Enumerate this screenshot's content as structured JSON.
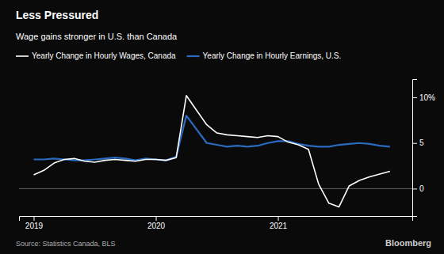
{
  "chart_data": {
    "type": "line",
    "title": "Less Pressured",
    "subtitle": "Wage gains stronger in U.S. than Canada",
    "annotations": [
      "Source: Statistics Canada, BLS",
      "Bloomberg"
    ],
    "x": [
      2019.0,
      2019.083,
      2019.167,
      2019.25,
      2019.333,
      2019.417,
      2019.5,
      2019.583,
      2019.667,
      2019.75,
      2019.833,
      2019.917,
      2020.0,
      2020.083,
      2020.167,
      2020.25,
      2020.333,
      2020.417,
      2020.5,
      2020.583,
      2020.667,
      2020.75,
      2020.833,
      2020.917,
      2021.0,
      2021.083,
      2021.167,
      2021.25,
      2021.333,
      2021.417,
      2021.5,
      2021.583,
      2021.667,
      2021.75,
      2021.833,
      2021.917
    ],
    "series": [
      {
        "name": "Yearly Change in Hourly Wages, Canada",
        "color": "#ffffff",
        "values": [
          1.5,
          2.0,
          2.8,
          3.2,
          3.3,
          3.0,
          2.9,
          3.1,
          3.2,
          3.1,
          3.0,
          3.2,
          3.2,
          3.1,
          3.4,
          10.2,
          8.6,
          7.0,
          6.1,
          5.9,
          5.8,
          5.7,
          5.6,
          5.8,
          5.7,
          5.1,
          4.8,
          4.3,
          0.5,
          -1.6,
          -2.0,
          0.3,
          0.9,
          1.3,
          1.6,
          1.9
        ]
      },
      {
        "name": "Yearly Change in Hourly Earnings, U.S.",
        "color": "#2a6bbf",
        "values": [
          3.2,
          3.2,
          3.3,
          3.2,
          3.1,
          3.1,
          3.2,
          3.3,
          3.4,
          3.3,
          3.1,
          3.3,
          3.2,
          3.1,
          3.5,
          8.0,
          6.5,
          5.0,
          4.8,
          4.6,
          4.7,
          4.6,
          4.7,
          5.0,
          5.2,
          5.2,
          4.9,
          4.7,
          4.6,
          4.6,
          4.8,
          4.9,
          5.0,
          4.9,
          4.7,
          4.6
        ]
      }
    ],
    "xlim": [
      2018.88,
      2022.1
    ],
    "xticks": [
      2019,
      2020,
      2021
    ],
    "ylim": [
      -3.0,
      12.0
    ],
    "yticks": [
      0,
      5,
      {
        "value": 10,
        "label": "10%"
      }
    ],
    "legend": "top"
  }
}
